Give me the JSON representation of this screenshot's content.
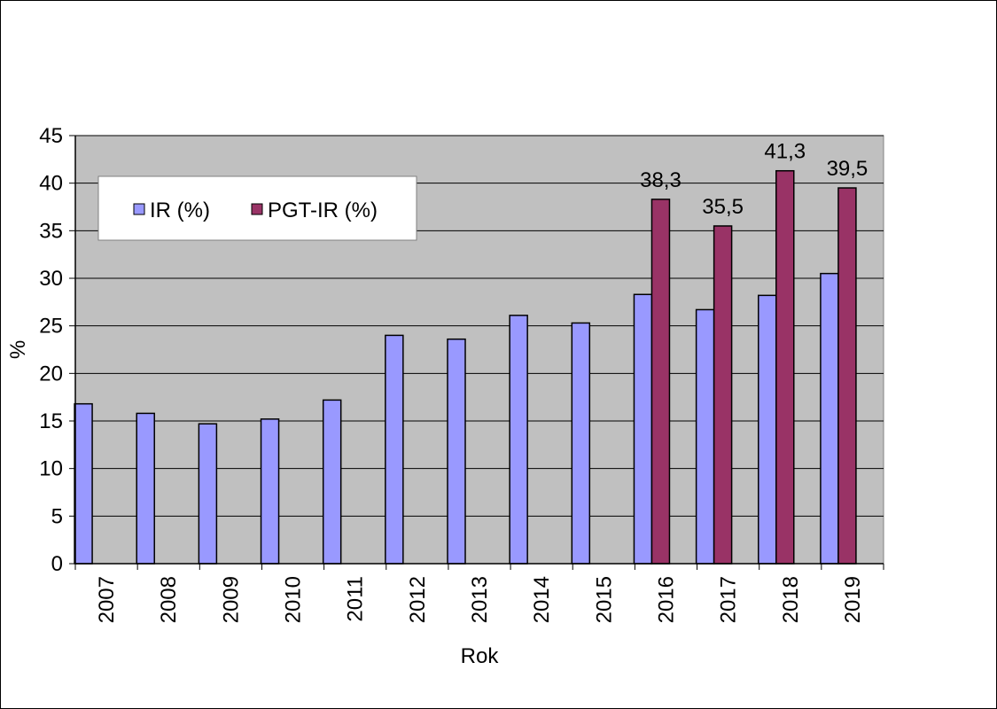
{
  "chart_data": {
    "type": "bar",
    "xlabel": "Rok",
    "ylabel": "%",
    "ylim": [
      0,
      45
    ],
    "yticks": [
      0,
      5,
      10,
      15,
      20,
      25,
      30,
      35,
      40,
      45
    ],
    "grid": true,
    "legend_position": "top-left",
    "categories": [
      "2007",
      "2008",
      "2009",
      "2010",
      "2011",
      "2012",
      "2013",
      "2014",
      "2015",
      "2016",
      "2017",
      "2018",
      "2019"
    ],
    "series": [
      {
        "name": "IR (%)",
        "color": "#9999ff",
        "values": [
          16.8,
          15.8,
          14.7,
          15.2,
          17.2,
          24.0,
          23.6,
          26.1,
          25.3,
          28.3,
          26.7,
          28.2,
          30.5
        ]
      },
      {
        "name": "PGT-IR (%)",
        "color": "#993366",
        "values": [
          null,
          null,
          null,
          null,
          null,
          null,
          null,
          null,
          null,
          38.3,
          35.5,
          41.3,
          39.5
        ],
        "data_labels": [
          "",
          "",
          "",
          "",
          "",
          "",
          "",
          "",
          "",
          "38,3",
          "35,5",
          "41,3",
          "39,5"
        ]
      }
    ]
  },
  "colors": {
    "plot_background": "#c0c0c0",
    "grid": "#000000"
  }
}
